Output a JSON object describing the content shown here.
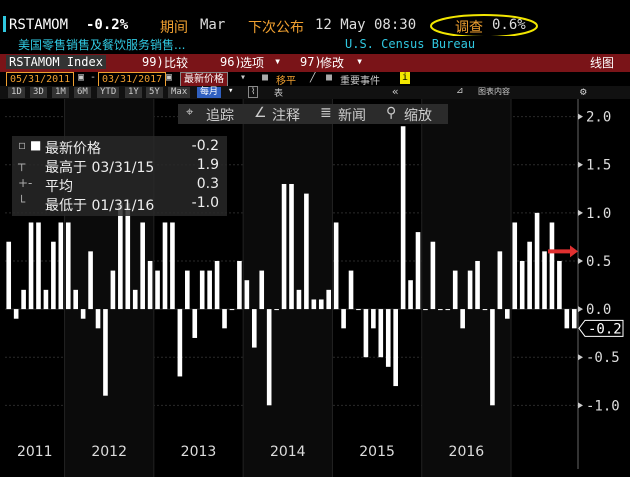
{
  "header": {
    "ticker": "RSTAMOM",
    "change": "-0.2%",
    "period_label": "期间",
    "period_value": "Mar",
    "next_release_label": "下次公布",
    "next_release_value": "12 May 08:30",
    "survey_label": "调查",
    "survey_value": "0.6%",
    "description": "美国零售销售及餐饮服务销售...",
    "source": "U.S. Census Bureau"
  },
  "menu": {
    "index_name": "RSTAMOM Index",
    "compare_num": "99)",
    "compare_label": "比较",
    "options_num": "96)",
    "options_label": "选项",
    "edit_num": "97)",
    "edit_label": "修改",
    "line_chart": "线图"
  },
  "date_bar": {
    "start": "05/31/2011",
    "end": "03/31/2017",
    "field": "最新价格",
    "moving_avg": "移平",
    "key_events": "重要事件"
  },
  "range_buttons": [
    "1D",
    "3D",
    "1M",
    "6M",
    "YTD",
    "1Y",
    "5Y",
    "Max"
  ],
  "frequency": "每月",
  "table_label": "表",
  "chart_content_label": "图表内容",
  "toolbar": {
    "track": "追踪",
    "annotate": "注释",
    "news": "新闻",
    "zoom": "缩放"
  },
  "legend": {
    "last_label": "最新价格",
    "last_value": "-0.2",
    "high_label": "最高于 03/31/15",
    "high_value": "1.9",
    "avg_label": "平均",
    "avg_value": "0.3",
    "low_label": "最低于 01/31/16",
    "low_value": "-1.0"
  },
  "colors": {
    "bars": "#ffffff",
    "survey_highlight": "#f2e600",
    "arrow": "#e03030",
    "header_orange": "#f0a030",
    "header_cyan": "#30c8e0"
  },
  "chart_data": {
    "type": "bar",
    "ylim": [
      -1.35,
      2.1
    ],
    "yticks": [
      "2.0",
      "1.5",
      "1.0",
      "0.5",
      "0.0",
      "-0.5",
      "-1.0"
    ],
    "ytick_values": [
      2.0,
      1.5,
      1.0,
      0.5,
      0.0,
      -0.5,
      -1.0
    ],
    "last_label": "-0.2",
    "survey_marker": 0.6,
    "year_labels": [
      "2011",
      "2012",
      "2013",
      "2014",
      "2015",
      "2016"
    ],
    "start_month": "2011-05",
    "values": [
      0.7,
      -0.1,
      0.2,
      0.9,
      0.9,
      0.2,
      0.7,
      0.9,
      0.9,
      0.2,
      -0.1,
      0.6,
      -0.2,
      -0.9,
      0.4,
      1.1,
      1.1,
      0.2,
      0.9,
      0.5,
      0.4,
      0.9,
      0.9,
      -0.7,
      0.4,
      -0.3,
      0.4,
      0.4,
      0.5,
      -0.2,
      0.0,
      0.5,
      0.3,
      -0.4,
      0.4,
      -1.0,
      0.0,
      1.3,
      1.3,
      0.2,
      1.2,
      0.1,
      0.1,
      0.2,
      0.9,
      -0.2,
      0.4,
      0.0,
      -0.5,
      -0.2,
      -0.5,
      -0.6,
      -0.8,
      1.9,
      0.3,
      0.8,
      0.0,
      0.7,
      0.0,
      0.0,
      0.4,
      -0.2,
      0.4,
      0.5,
      0.0,
      -1.0,
      0.6,
      -0.1,
      0.9,
      0.5,
      0.7,
      1.0,
      0.6,
      0.9,
      0.5,
      -0.2,
      -0.2
    ]
  }
}
